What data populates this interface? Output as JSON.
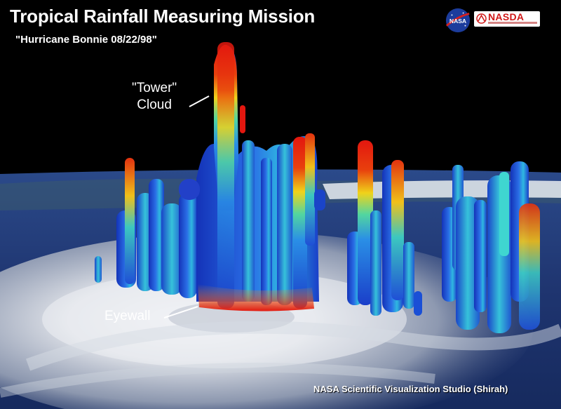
{
  "title": "Tropical Rainfall Measuring Mission",
  "subtitle": "\"Hurricane Bonnie 08/22/98\"",
  "labels": {
    "tower_line1": "\"Tower\"",
    "tower_line2": "Cloud",
    "eyewall": "Eyewall"
  },
  "credit": "NASA Scientific Visualization Studio (Shirah)",
  "logos": {
    "nasa": "NASA",
    "nasda": "NASDA"
  },
  "colors": {
    "background": "#000000",
    "rain_low": "#1a3fd1",
    "rain_mid": "#2fc6d8",
    "rain_high": "#f2e418",
    "rain_peak": "#e3170f",
    "ocean": "#243a7a",
    "cloud": "#e6e8ec"
  }
}
